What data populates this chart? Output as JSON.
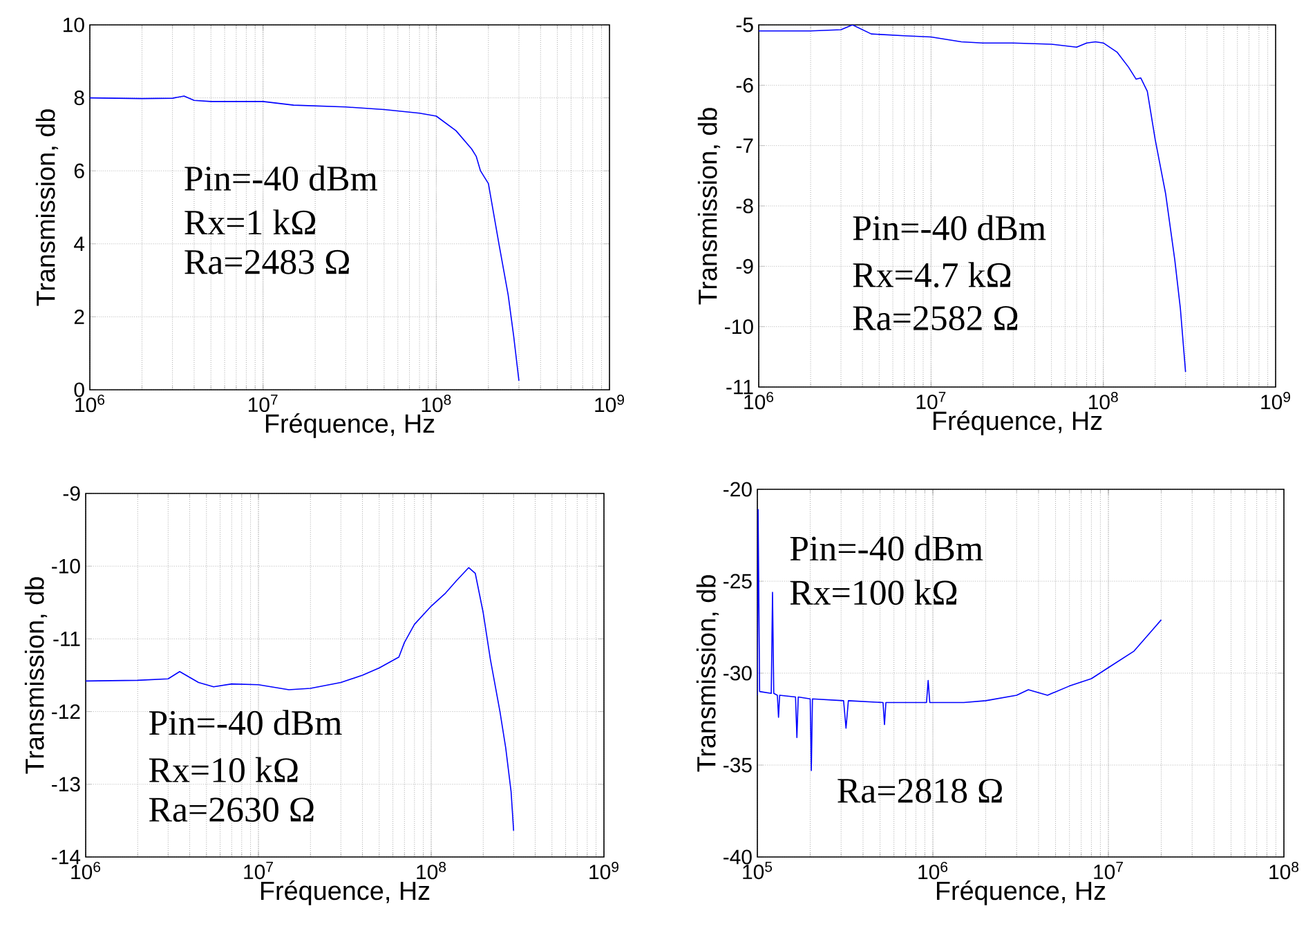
{
  "chart_data": [
    {
      "type": "line",
      "xlabel": "Fréquence, Hz",
      "ylabel": "Transmission, db",
      "log": "x",
      "grid": true,
      "xlim": [
        1000000,
        1000000000
      ],
      "xticks": [
        {
          "value": 1000000,
          "label": "10$^{6}$"
        },
        {
          "value": 10000000,
          "label": "10$^{7}$"
        },
        {
          "value": 100000000,
          "label": "10$^{8}$"
        },
        {
          "value": 1000000000,
          "label": "10$^{9}$"
        }
      ],
      "ylim": [
        0,
        10
      ],
      "yticks": [
        0,
        2,
        4,
        6,
        8,
        10
      ],
      "annotations": [
        "Pin=-40 dBm",
        "Rx=1 kΩ",
        "Ra=2483 Ω"
      ],
      "series": [
        {
          "color": "#0000ff",
          "x": [
            1000000,
            2000000,
            3000000,
            3500000,
            4000000,
            5000000,
            10000000,
            15000000,
            30000000,
            50000000,
            80000000,
            100000000,
            130000000,
            160000000,
            170000000,
            180000000,
            200000000,
            230000000,
            260000000,
            280000000,
            300000000
          ],
          "values": [
            8.0,
            7.98,
            7.99,
            8.05,
            7.93,
            7.9,
            7.9,
            7.8,
            7.75,
            7.68,
            7.58,
            7.5,
            7.1,
            6.6,
            6.4,
            6.0,
            5.65,
            4.0,
            2.6,
            1.46,
            0.25
          ]
        }
      ]
    },
    {
      "type": "line",
      "xlabel": "Fréquence, Hz",
      "ylabel": "Transmission, db",
      "log": "x",
      "grid": true,
      "xlim": [
        1000000,
        1000000000
      ],
      "xticks": [
        {
          "value": 1000000,
          "label": "10$^{6}$"
        },
        {
          "value": 10000000,
          "label": "10$^{7}$"
        },
        {
          "value": 100000000,
          "label": "10$^{8}$"
        },
        {
          "value": 1000000000,
          "label": "10$^{9}$"
        }
      ],
      "ylim": [
        -11,
        -5
      ],
      "yticks": [
        -11,
        -10,
        -9,
        -8,
        -7,
        -6,
        -5
      ],
      "annotations": [
        "Pin=-40 dBm",
        "Rx=4.7 kΩ",
        "Ra=2582 Ω"
      ],
      "series": [
        {
          "color": "#0000ff",
          "x": [
            1000000,
            2000000,
            3000000,
            3500000,
            4500000,
            7000000,
            10000000,
            15000000,
            20000000,
            30000000,
            50000000,
            70000000,
            80000000,
            90000000,
            100000000,
            120000000,
            140000000,
            155000000,
            165000000,
            180000000,
            200000000,
            230000000,
            260000000,
            280000000,
            300000000
          ],
          "values": [
            -5.1,
            -5.1,
            -5.08,
            -5.0,
            -5.15,
            -5.18,
            -5.2,
            -5.28,
            -5.3,
            -5.3,
            -5.32,
            -5.37,
            -5.3,
            -5.28,
            -5.3,
            -5.45,
            -5.7,
            -5.9,
            -5.88,
            -6.1,
            -6.9,
            -7.8,
            -8.9,
            -9.7,
            -10.75
          ]
        }
      ]
    },
    {
      "type": "line",
      "xlabel": "Fréquence, Hz",
      "ylabel": "Transmission, db",
      "log": "x",
      "grid": true,
      "xlim": [
        1000000,
        1000000000
      ],
      "xticks": [
        {
          "value": 1000000,
          "label": "10$^{6}$"
        },
        {
          "value": 10000000,
          "label": "10$^{7}$"
        },
        {
          "value": 100000000,
          "label": "10$^{8}$"
        },
        {
          "value": 1000000000,
          "label": "10$^{9}$"
        }
      ],
      "ylim": [
        -14,
        -9
      ],
      "yticks": [
        -14,
        -13,
        -12,
        -11,
        -10,
        -9
      ],
      "annotations": [
        "Pin=-40 dBm",
        "Rx=10 kΩ",
        "Ra=2630 Ω"
      ],
      "series": [
        {
          "color": "#0000ff",
          "x": [
            1000000,
            2000000,
            3000000,
            3500000,
            4500000,
            5500000,
            7000000,
            10000000,
            15000000,
            20000000,
            30000000,
            40000000,
            50000000,
            65000000,
            70000000,
            80000000,
            100000000,
            120000000,
            140000000,
            165000000,
            180000000,
            200000000,
            220000000,
            250000000,
            270000000,
            290000000,
            300000000
          ],
          "values": [
            -11.58,
            -11.57,
            -11.55,
            -11.45,
            -11.6,
            -11.66,
            -11.62,
            -11.63,
            -11.7,
            -11.68,
            -11.6,
            -11.5,
            -11.4,
            -11.25,
            -11.05,
            -10.8,
            -10.55,
            -10.38,
            -10.2,
            -10.02,
            -10.1,
            -10.64,
            -11.28,
            -12.0,
            -12.5,
            -13.1,
            -13.64
          ]
        }
      ]
    },
    {
      "type": "line",
      "xlabel": "Fréquence, Hz",
      "ylabel": "Transmission, db",
      "log": "x",
      "grid": true,
      "xlim": [
        100000,
        100000000
      ],
      "xticks": [
        {
          "value": 100000,
          "label": "10$^{5}$"
        },
        {
          "value": 1000000,
          "label": "10$^{6}$"
        },
        {
          "value": 10000000,
          "label": "10$^{7}$"
        },
        {
          "value": 100000000,
          "label": "10$^{8}$"
        }
      ],
      "ylim": [
        -40,
        -20
      ],
      "yticks": [
        -40,
        -35,
        -30,
        -25,
        -20
      ],
      "annotations": [
        "Pin=-40 dBm",
        "Rx=100 kΩ",
        "Ra=2818 Ω"
      ],
      "series": [
        {
          "color": "#0000ff",
          "x": [
            100000,
            101000,
            103000,
            120000,
            122000,
            124000,
            130000,
            132000,
            134000,
            165000,
            168000,
            171000,
            200000,
            203000,
            206000,
            310000,
            320000,
            330000,
            520000,
            530000,
            540000,
            920000,
            940000,
            960000,
            1500000,
            2000000,
            3000000,
            3500000,
            4500000,
            6000000,
            8000000,
            10000000,
            14000000,
            18000000,
            20000000
          ],
          "values": [
            -31.2,
            -21.1,
            -31.0,
            -31.1,
            -25.6,
            -31.1,
            -31.2,
            -32.4,
            -31.2,
            -31.3,
            -33.5,
            -31.3,
            -31.4,
            -35.3,
            -31.4,
            -31.5,
            -33.0,
            -31.5,
            -31.6,
            -32.8,
            -31.6,
            -31.6,
            -30.4,
            -31.6,
            -31.6,
            -31.5,
            -31.2,
            -30.9,
            -31.2,
            -30.7,
            -30.3,
            -29.7,
            -28.8,
            -27.6,
            -27.1
          ]
        }
      ]
    }
  ]
}
